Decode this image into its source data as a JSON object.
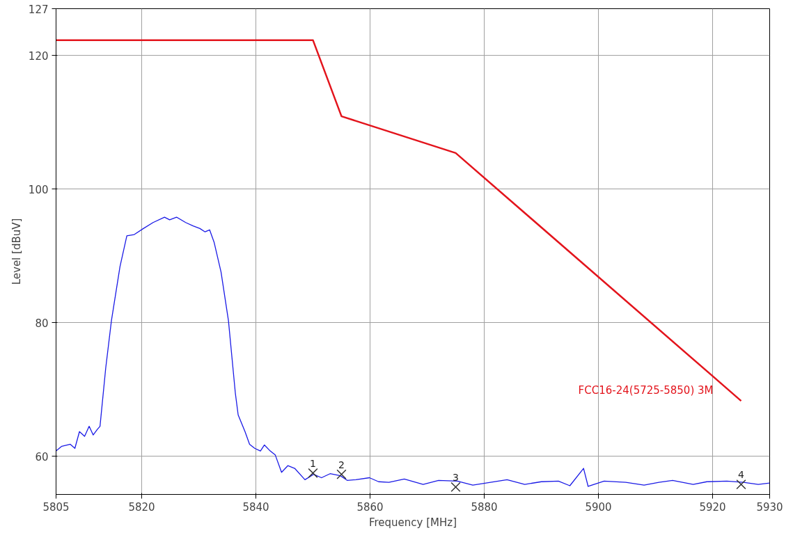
{
  "chart_data": {
    "type": "line",
    "xlabel": "Frequency [MHz]",
    "ylabel": "Level [dBuV]",
    "xlim": [
      5805,
      5930
    ],
    "ylim": [
      54.3,
      127
    ],
    "xticks": [
      5805,
      5820,
      5840,
      5860,
      5880,
      5900,
      5920,
      5930
    ],
    "yticks": [
      60,
      80,
      100,
      120,
      127
    ],
    "grid": true,
    "annotations": [
      {
        "text": "1",
        "x": 5850,
        "y": 57.5
      },
      {
        "text": "2",
        "x": 5855,
        "y": 57.3
      },
      {
        "text": "3",
        "x": 5875,
        "y": 55.4
      },
      {
        "text": "4",
        "x": 5925,
        "y": 55.8
      }
    ],
    "series": [
      {
        "color": "#1a1ae6",
        "x": [
          5805,
          5806,
          5807.5,
          5808.3,
          5809.1,
          5810,
          5810.8,
          5811.5,
          5812.2,
          5812.7,
          5813.7,
          5814.7,
          5816.2,
          5817.4,
          5818.7,
          5820.3,
          5822,
          5824,
          5824.9,
          5826.1,
          5827.7,
          5829,
          5830.2,
          5831.1,
          5831.9,
          5832.7,
          5833.9,
          5835.2,
          5836.4,
          5836.9,
          5838.1,
          5838.9,
          5839.8,
          5840.8,
          5841.5,
          5842.4,
          5843.4,
          5844.5,
          5845.6,
          5846.8,
          5848.6,
          5850.1,
          5851.5,
          5853,
          5854.8,
          5856,
          5857.5,
          5859.9,
          5861.5,
          5863.3,
          5866,
          5869.3,
          5872,
          5875.3,
          5878,
          5881.1,
          5884,
          5887.1,
          5890,
          5893,
          5895,
          5897.4,
          5898.2,
          5901,
          5904.8,
          5908,
          5910.6,
          5913,
          5916.6,
          5919,
          5922.5,
          5925.4,
          5928,
          5930
        ],
        "values": [
          60.8,
          61.5,
          61.8,
          61.2,
          63.7,
          63.0,
          64.5,
          63.2,
          64.0,
          64.5,
          73.2,
          80.3,
          88.4,
          93.0,
          93.2,
          94.1,
          95.0,
          95.8,
          95.4,
          95.8,
          95.0,
          94.5,
          94.1,
          93.6,
          93.9,
          92.0,
          87.6,
          80.3,
          69.5,
          66.2,
          63.7,
          61.8,
          61.2,
          60.8,
          61.7,
          60.9,
          60.2,
          57.6,
          58.6,
          58.2,
          56.5,
          57.3,
          56.8,
          57.4,
          57.1,
          56.4,
          56.5,
          56.8,
          56.2,
          56.1,
          56.6,
          55.8,
          56.4,
          56.3,
          55.7,
          56.1,
          56.5,
          55.8,
          56.2,
          56.3,
          55.6,
          58.2,
          55.5,
          56.3,
          56.1,
          55.7,
          56.1,
          56.4,
          55.8,
          56.2,
          56.3,
          56.1,
          55.8,
          56.0
        ]
      },
      {
        "name": "FCC16-24(5725-5850) 3M",
        "color": "#e3141c",
        "x": [
          5805,
          5850,
          5855,
          5875,
          5925
        ],
        "values": [
          122.3,
          122.3,
          110.9,
          105.4,
          68.3
        ]
      },
      {
        "type": "scatter",
        "marker": "cross",
        "color": "#333333",
        "x": [
          5850,
          5855,
          5875,
          5925
        ],
        "values": [
          57.5,
          57.3,
          55.4,
          55.8
        ]
      }
    ]
  }
}
